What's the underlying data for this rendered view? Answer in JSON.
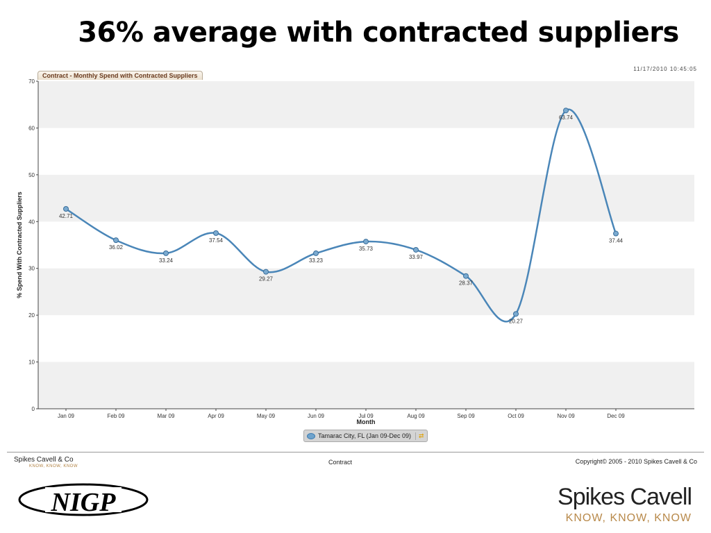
{
  "slide_title": "36% average with contracted suppliers",
  "timestamp": "11/17/2010 10:45:05",
  "tab_label": "Contract - Monthly Spend with Contracted Suppliers",
  "legend_label": "Tamarac City, FL (Jan 09-Dec 09)",
  "footer": {
    "company": "Spikes Cavell & Co",
    "tagline": "KNOW, KNOW, KNOW",
    "center": "Contract",
    "copyright": "Copyright© 2005 - 2010 Spikes Cavell & Co"
  },
  "logos": {
    "nigp": "NIGP",
    "spikes": "Spikes Cavell",
    "spikes_tag": "KNOW, KNOW, KNOW"
  },
  "colors": {
    "line": "#4a86b8",
    "band": "#f0f0f0"
  },
  "chart_data": {
    "type": "line",
    "title": "Contract - Monthly Spend with Contracted Suppliers",
    "xlabel": "Month",
    "ylabel": "% Spend With Contracted Suppliers",
    "ylim": [
      0,
      70
    ],
    "yticks": [
      0,
      10,
      20,
      30,
      40,
      50,
      60,
      70
    ],
    "categories": [
      "Jan 09",
      "Feb 09",
      "Mar 09",
      "Apr 09",
      "May 09",
      "Jun 09",
      "Jul 09",
      "Aug 09",
      "Sep 09",
      "Oct 09",
      "Nov 09",
      "Dec 09"
    ],
    "series": [
      {
        "name": "Tamarac City, FL (Jan 09-Dec 09)",
        "values": [
          42.71,
          36.02,
          33.24,
          37.54,
          29.27,
          33.23,
          35.73,
          33.97,
          28.37,
          20.27,
          63.74,
          37.44
        ]
      }
    ]
  }
}
